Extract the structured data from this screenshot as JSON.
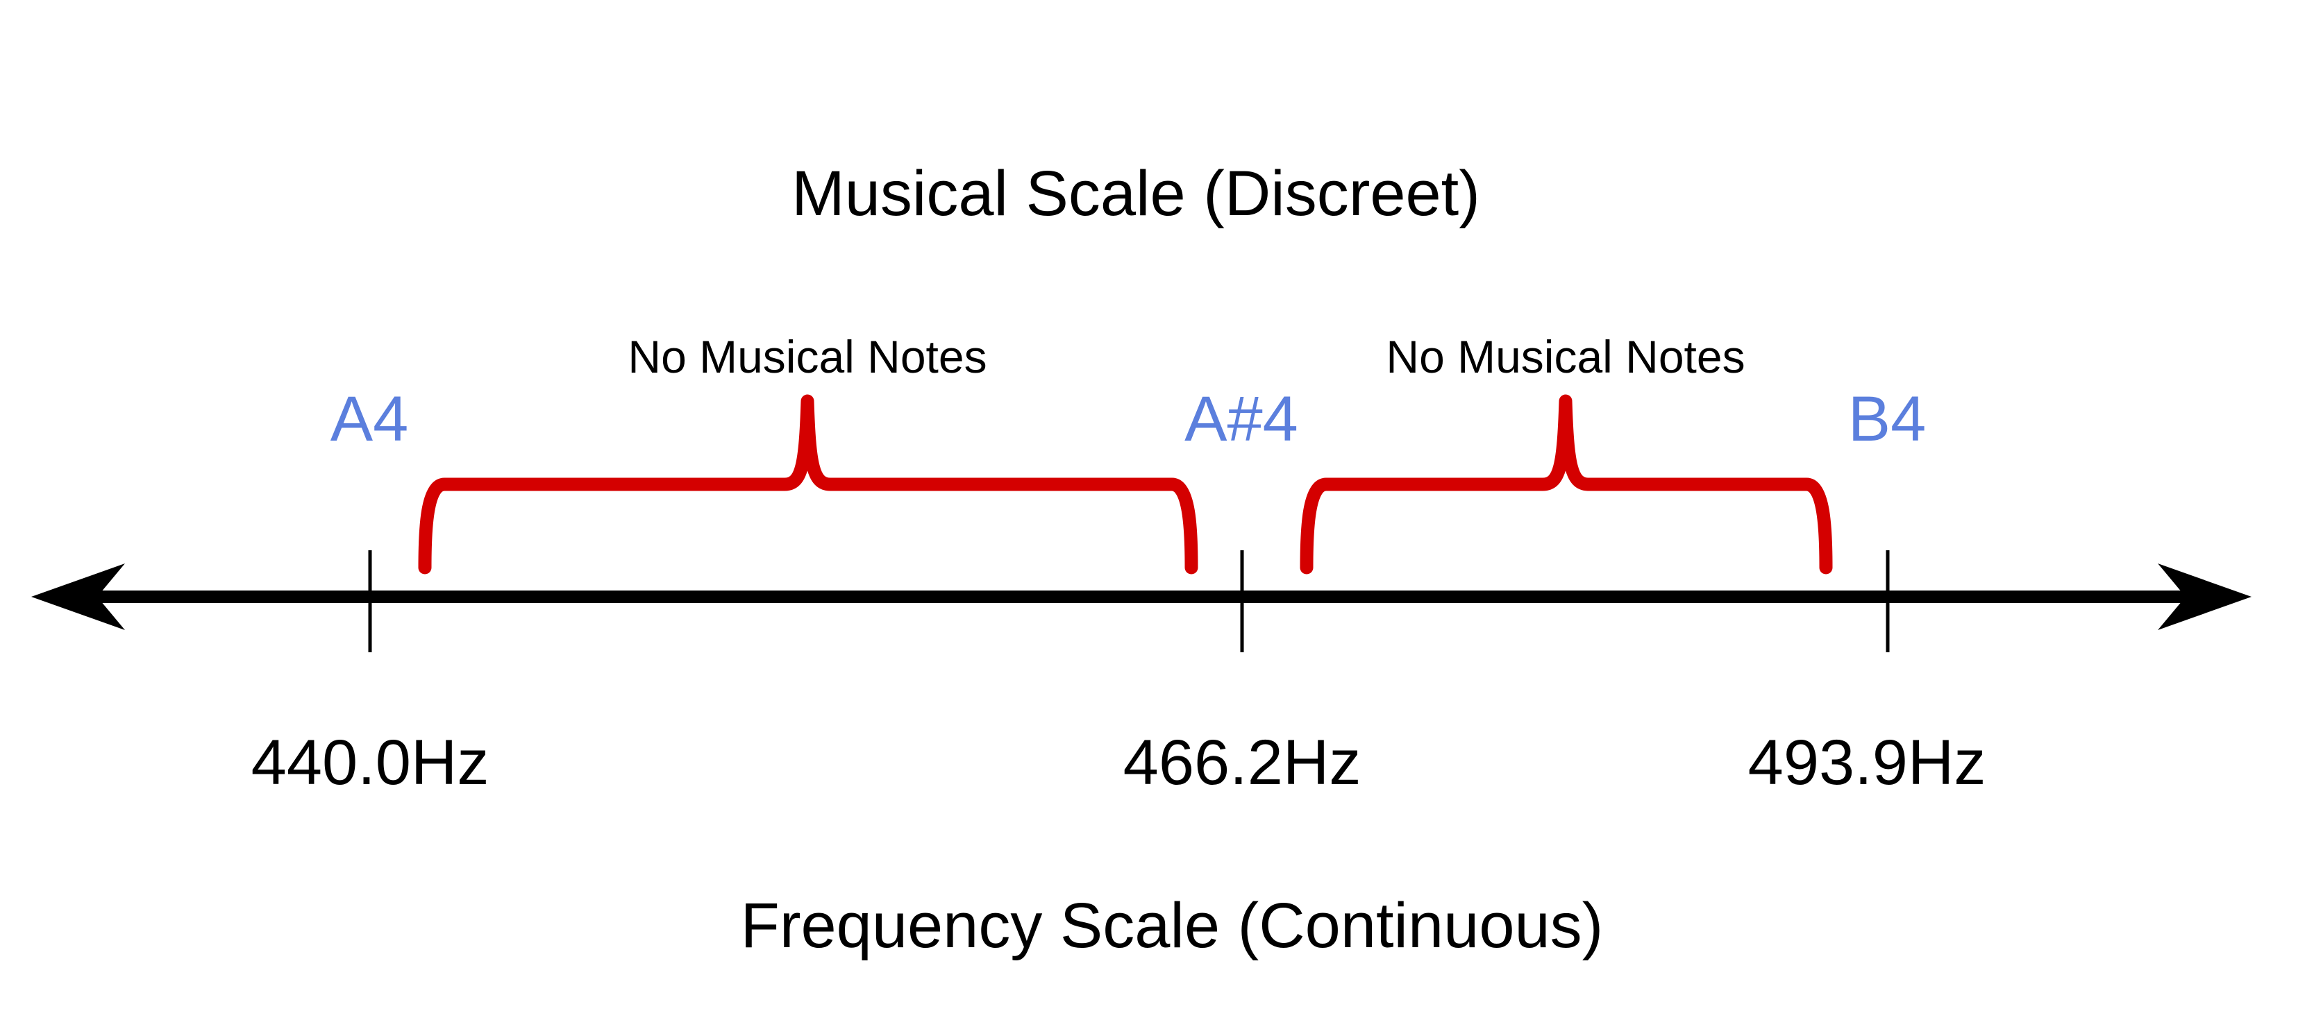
{
  "diagram": {
    "top_title": "Musical Scale (Discreet)",
    "bottom_title": "Frequency Scale (Continuous)",
    "gaps": [
      {
        "label": "No Musical Notes"
      },
      {
        "label": "No Musical Notes"
      }
    ],
    "notes": [
      {
        "name": "A4",
        "frequency": "440.0Hz"
      },
      {
        "name": "A#4",
        "frequency": "466.2Hz"
      },
      {
        "name": "B4",
        "frequency": "493.9Hz"
      }
    ],
    "colors": {
      "note_label": "#5b7fdd",
      "brace": "#d40000",
      "axis": "#000000",
      "text": "#000000"
    }
  }
}
